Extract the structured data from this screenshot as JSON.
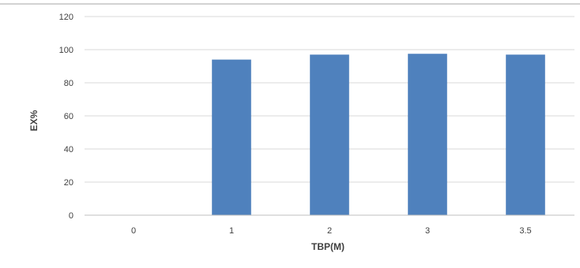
{
  "chart_data": {
    "type": "bar",
    "categories": [
      "0",
      "1",
      "2",
      "3",
      "3.5"
    ],
    "values": [
      0,
      94,
      97,
      97.5,
      97
    ],
    "title": "",
    "xlabel": "TBP(M)",
    "ylabel": "EX%",
    "ylim": [
      0,
      120
    ],
    "yticks": [
      0,
      20,
      40,
      60,
      80,
      100,
      120
    ],
    "grid": true,
    "legend": "none",
    "bar_color": "#4f81bd"
  }
}
